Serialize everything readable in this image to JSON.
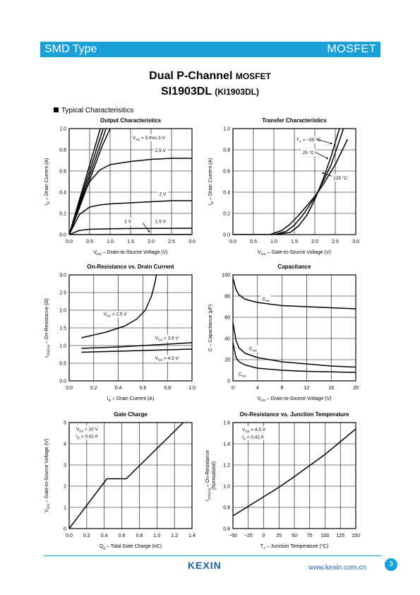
{
  "header": {
    "left": "SMD Type",
    "right": "MOSFET"
  },
  "title": {
    "line1": "Dual P-Channel",
    "line1_small": "MOSFET",
    "line2": "SI1903DL",
    "line2_small": "(KI1903DL)"
  },
  "section_label": "Typical  Characterisitics",
  "colors": {
    "accent": "#1aa0d8",
    "logo": "#1b5fa6"
  },
  "charts": [
    {
      "id": "output",
      "title": "Output Characteristics",
      "x_ticks": [
        "0.0",
        "0.5",
        "1.0",
        "1.5",
        "2.0",
        "2.5",
        "3.0"
      ],
      "y_ticks": [
        "0.0",
        "0.2",
        "0.4",
        "0.6",
        "0.8",
        "1.0"
      ],
      "xlabel": {
        "sym": "V",
        "sub": "DS",
        "text": "–  Drain-to-Source Voltage (V)"
      },
      "ylabel": {
        "sym": "I",
        "sub": "D",
        "text": "–  Drain Current (A)"
      },
      "labels": [
        {
          "id": "vgs5",
          "text": "V",
          "sub": "GS",
          "rest": "= 5 thru 3 V"
        },
        {
          "id": "v25",
          "text": "2.5 V"
        },
        {
          "id": "v2",
          "text": "2 V"
        },
        {
          "id": "v15",
          "text": "1.5 V"
        },
        {
          "id": "v1",
          "text": "1 V"
        }
      ]
    },
    {
      "id": "transfer",
      "title": "Transfer Characteristics",
      "x_ticks": [
        "0.0",
        "0.5",
        "1.0",
        "1.5",
        "2.0",
        "2.5",
        "3.0"
      ],
      "y_ticks": [
        "0.0",
        "0.2",
        "0.4",
        "0.6",
        "0.8",
        "1.0"
      ],
      "xlabel": {
        "sym": "V",
        "sub": "GS",
        "text": "–  Gate-to-Source Voltage (V)"
      },
      "ylabel": {
        "sym": "I",
        "sub": "D",
        "text": "–  Drain Current (A)"
      },
      "labels": [
        {
          "id": "tc",
          "text": "T",
          "sub": "C",
          "rest": "= −55 °C"
        },
        {
          "id": "t25",
          "text": "25 °C"
        },
        {
          "id": "t125",
          "text": "125 °C"
        }
      ]
    },
    {
      "id": "onres",
      "title": "On-Resistance vs. Drain Current",
      "x_ticks": [
        "0.0",
        "0.2",
        "0.4",
        "0.6",
        "0.8",
        "1.0"
      ],
      "y_ticks": [
        "0.0",
        "0.5",
        "1.0",
        "1.5",
        "2.0",
        "2.5",
        "3.0"
      ],
      "xlabel": {
        "sym": "I",
        "sub": "D",
        "text": "–  Drain Current (A)"
      },
      "ylabel": {
        "sym": "r",
        "sub": "DS(on)",
        "text": "–  On-Resistance (Ω)"
      },
      "labels": [
        {
          "id": "g25",
          "text": "V",
          "sub": "GS",
          "rest": "= 2.5 V"
        },
        {
          "id": "g36",
          "text": "V",
          "sub": "GS",
          "rest": "= 3.6 V"
        },
        {
          "id": "g45",
          "text": "V",
          "sub": "GS",
          "rest": "= 4.5 V"
        }
      ]
    },
    {
      "id": "cap",
      "title": "Capacitance",
      "x_ticks": [
        "0",
        "4",
        "8",
        "12",
        "16",
        "20"
      ],
      "y_ticks": [
        "0",
        "20",
        "40",
        "60",
        "80",
        "100"
      ],
      "xlabel": {
        "sym": "V",
        "sub": "DS",
        "text": "–  Drain-to-Source Voltage (V)"
      },
      "ylabel": {
        "sym": "C",
        "sub": "",
        "text": "–  Capacitance (pF)"
      },
      "labels": [
        {
          "id": "ciss",
          "text": "C",
          "sub": "iss",
          "rest": ""
        },
        {
          "id": "coss",
          "text": "C",
          "sub": "oss",
          "rest": ""
        },
        {
          "id": "crss",
          "text": "C",
          "sub": "rss",
          "rest": ""
        }
      ]
    },
    {
      "id": "gate",
      "title": "Gate Charge",
      "x_ticks": [
        "0.0",
        "0.2",
        "0.4",
        "0.6",
        "0.8",
        "1.0",
        "1.2",
        "1.4"
      ],
      "y_ticks": [
        "0",
        "1",
        "2",
        "3",
        "4",
        "5"
      ],
      "xlabel": {
        "sym": "Q",
        "sub": "g",
        "text": "–  Total Gate Charge (nC)"
      },
      "ylabel": {
        "sym": "V",
        "sub": "GS",
        "text": "–  Gate-to-Source Voltage (V)"
      },
      "labels": [
        {
          "id": "gvds",
          "text": "V",
          "sub": "DS",
          "rest": "= 10 V"
        },
        {
          "id": "gid",
          "text": "I",
          "sub": "D",
          "rest": "= 0.41 A"
        }
      ]
    },
    {
      "id": "temp",
      "title": "On-Resistance vs. Junction Temperature",
      "x_ticks": [
        "−50",
        "−25",
        "0",
        "25",
        "50",
        "75",
        "100",
        "125",
        "150"
      ],
      "y_ticks": [
        "0.6",
        "0.8",
        "1.0",
        "1.2",
        "1.4",
        "1.6"
      ],
      "xlabel": {
        "sym": "T",
        "sub": "J",
        "text": "– Junction Temperature (°C)"
      },
      "ylabel": {
        "sym": "r",
        "sub": "DS(on)",
        "text": "– On-Resistance",
        "text2": "(Normalized)"
      },
      "labels": [
        {
          "id": "tvgs",
          "text": "V",
          "sub": "GS",
          "rest": "= 4.5 V"
        },
        {
          "id": "tid",
          "text": "I",
          "sub": "D",
          "rest": "= 0.41 A"
        }
      ]
    }
  ],
  "chart_data": [
    {
      "type": "line",
      "title": "Output Characteristics",
      "xlabel": "VDS – Drain-to-Source Voltage (V)",
      "ylabel": "ID – Drain Current (A)",
      "xlim": [
        0,
        3
      ],
      "ylim": [
        0,
        1
      ],
      "grid": true,
      "series": [
        {
          "name": "VGS = 5 thru 3 V",
          "x": [
            0,
            0.2,
            0.4,
            0.6,
            0.8,
            1.0
          ],
          "y": [
            0,
            0.2,
            0.41,
            0.62,
            0.83,
            1.0
          ]
        },
        {
          "name": "2.5 V",
          "x": [
            0,
            0.25,
            0.5,
            0.75,
            1.0,
            1.5,
            2.0,
            2.5,
            3.0
          ],
          "y": [
            0,
            0.28,
            0.5,
            0.61,
            0.66,
            0.69,
            0.71,
            0.72,
            0.72
          ]
        },
        {
          "name": "2 V",
          "x": [
            0,
            0.25,
            0.5,
            0.75,
            1.0,
            1.5,
            2.0,
            2.5,
            3.0
          ],
          "y": [
            0,
            0.19,
            0.26,
            0.28,
            0.29,
            0.3,
            0.31,
            0.32,
            0.32
          ]
        },
        {
          "name": "1.5 V",
          "x": [
            0,
            0.25,
            0.5,
            1.0,
            1.5,
            2.0,
            3.0
          ],
          "y": [
            0,
            0.04,
            0.05,
            0.055,
            0.057,
            0.058,
            0.06
          ]
        },
        {
          "name": "1 V",
          "x": [
            0,
            3.0
          ],
          "y": [
            0.0,
            0.002
          ]
        }
      ]
    },
    {
      "type": "line",
      "title": "Transfer Characteristics",
      "xlabel": "VGS – Gate-to-Source Voltage (V)",
      "ylabel": "ID – Drain Current (A)",
      "xlim": [
        0,
        3
      ],
      "ylim": [
        0,
        1
      ],
      "grid": true,
      "series": [
        {
          "name": "TC = −55 °C",
          "x": [
            0,
            1.0,
            1.4,
            1.6,
            1.8,
            2.0,
            2.2,
            2.4,
            2.6
          ],
          "y": [
            0,
            0,
            0.02,
            0.08,
            0.18,
            0.33,
            0.52,
            0.74,
            1.0
          ]
        },
        {
          "name": "25 °C",
          "x": [
            0,
            1.0,
            1.3,
            1.5,
            1.7,
            2.0,
            2.2,
            2.4,
            2.7
          ],
          "y": [
            0,
            0,
            0.03,
            0.09,
            0.18,
            0.35,
            0.5,
            0.66,
            1.0
          ]
        },
        {
          "name": "125 °C",
          "x": [
            0,
            0.9,
            1.2,
            1.4,
            1.6,
            2.0,
            2.2,
            2.5,
            2.8
          ],
          "y": [
            0,
            0,
            0.04,
            0.1,
            0.18,
            0.36,
            0.47,
            0.66,
            0.9
          ]
        }
      ]
    },
    {
      "type": "line",
      "title": "On-Resistance vs. Drain Current",
      "xlabel": "ID – Drain Current (A)",
      "ylabel": "rDS(on) – On-Resistance (Ω)",
      "xlim": [
        0,
        1
      ],
      "ylim": [
        0,
        3
      ],
      "grid": true,
      "series": [
        {
          "name": "VGS = 2.5 V",
          "x": [
            0.1,
            0.3,
            0.45,
            0.55,
            0.62,
            0.67,
            0.7,
            0.71
          ],
          "y": [
            1.22,
            1.38,
            1.55,
            1.75,
            2.0,
            2.4,
            2.8,
            3.0
          ]
        },
        {
          "name": "VGS = 3.6 V",
          "x": [
            0.1,
            0.4,
            0.7,
            1.0
          ],
          "y": [
            0.92,
            0.96,
            1.02,
            1.08
          ]
        },
        {
          "name": "VGS = 4.5 V",
          "x": [
            0.1,
            0.4,
            0.7,
            1.0
          ],
          "y": [
            0.81,
            0.84,
            0.87,
            0.9
          ]
        }
      ]
    },
    {
      "type": "line",
      "title": "Capacitance",
      "xlabel": "VDS – Drain-to-Source Voltage (V)",
      "ylabel": "C – Capacitance (pF)",
      "xlim": [
        0,
        20
      ],
      "ylim": [
        0,
        100
      ],
      "grid": true,
      "series": [
        {
          "name": "Ciss",
          "x": [
            0,
            0.5,
            1,
            2,
            4,
            8,
            12,
            16,
            20
          ],
          "y": [
            97,
            86,
            81,
            77,
            74,
            71,
            70,
            69,
            68
          ]
        },
        {
          "name": "Coss",
          "x": [
            0,
            0.5,
            1,
            2,
            4,
            8,
            12,
            16,
            20
          ],
          "y": [
            55,
            38,
            31,
            26,
            22,
            18,
            16,
            14,
            13
          ]
        },
        {
          "name": "Crss",
          "x": [
            0,
            0.5,
            1,
            2,
            4,
            8,
            12,
            16,
            20
          ],
          "y": [
            36,
            22,
            18,
            15,
            12,
            10,
            9,
            8.5,
            8
          ]
        }
      ]
    },
    {
      "type": "line",
      "title": "Gate Charge",
      "xlabel": "Qg – Total Gate Charge (nC)",
      "ylabel": "VGS – Gate-to-Source Voltage (V)",
      "xlim": [
        0,
        1.4
      ],
      "ylim": [
        0,
        5
      ],
      "grid": true,
      "series": [
        {
          "name": "VDS = 10 V, ID = 0.41 A",
          "x": [
            0,
            0.43,
            0.65,
            1.3
          ],
          "y": [
            0,
            2.35,
            2.35,
            5.0
          ]
        }
      ]
    },
    {
      "type": "line",
      "title": "On-Resistance vs. Junction Temperature",
      "xlabel": "TJ – Junction Temperature (°C)",
      "ylabel": "rDS(on) – On-Resistance (Normalized)",
      "xlim": [
        -50,
        150
      ],
      "ylim": [
        0.6,
        1.6
      ],
      "grid": true,
      "series": [
        {
          "name": "VGS = 4.5 V, ID = 0.41 A",
          "x": [
            -50,
            0,
            25,
            50,
            100,
            150
          ],
          "y": [
            0.72,
            0.9,
            0.99,
            1.09,
            1.3,
            1.54
          ]
        }
      ]
    }
  ],
  "footer": {
    "logo": "KEXIN",
    "url": "www.kexin.com.cn",
    "page": "3"
  }
}
